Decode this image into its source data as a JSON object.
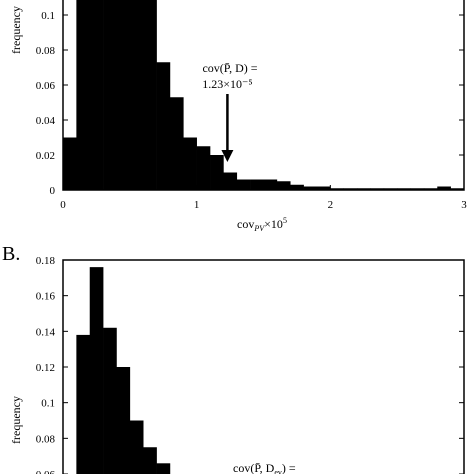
{
  "chart_data": [
    {
      "type": "bar",
      "panel_label": "",
      "xlabel": "cov_{PV}×10^5",
      "ylabel": "frequency",
      "xlim": [
        0,
        3
      ],
      "ylim": [
        0,
        0.12
      ],
      "xticks": [
        "0",
        "1",
        "2",
        "3"
      ],
      "yticks": [
        "0",
        "0.02",
        "0.04",
        "0.06",
        "0.08",
        "0.1"
      ],
      "bin_width": 0.1,
      "x": [
        0.0,
        0.1,
        0.2,
        0.3,
        0.4,
        0.5,
        0.6,
        0.7,
        0.8,
        0.9,
        1.0,
        1.1,
        1.2,
        1.3,
        1.4,
        1.5,
        1.6,
        1.7,
        1.8,
        1.9,
        2.0,
        2.1,
        2.2,
        2.3,
        2.4,
        2.5,
        2.6,
        2.7,
        2.8,
        2.9
      ],
      "values": [
        0.03,
        0.125,
        0.125,
        0.125,
        0.125,
        0.115,
        0.11,
        0.073,
        0.053,
        0.03,
        0.025,
        0.02,
        0.01,
        0.006,
        0.006,
        0.006,
        0.005,
        0.003,
        0.002,
        0.002,
        0.001,
        0.001,
        0.001,
        0.001,
        0.001,
        0.001,
        0.001,
        0.001,
        0.002,
        0.001
      ],
      "annotation": {
        "text_line1": "cov(P̄, D) =",
        "text_line2": "1.23×10⁻⁵",
        "x": 1.23
      }
    },
    {
      "type": "bar",
      "panel_label": "B.",
      "ylabel": "frequency",
      "ylim": [
        0.06,
        0.18
      ],
      "yticks": [
        "0.06",
        "0.08",
        "0.1",
        "0.12",
        "0.14",
        "0.16",
        "0.18"
      ],
      "bin_width": 0.1,
      "x": [
        0.0,
        0.1,
        0.2,
        0.3,
        0.4,
        0.5,
        0.6,
        0.7
      ],
      "values": [
        0.0,
        0.138,
        0.176,
        0.142,
        0.12,
        0.09,
        0.075,
        0.066
      ],
      "annotation": {
        "text_line1": "cov(P̄, D",
        "text_line1_sub": "ev",
        "text_line1_tail": ") ="
      }
    }
  ]
}
